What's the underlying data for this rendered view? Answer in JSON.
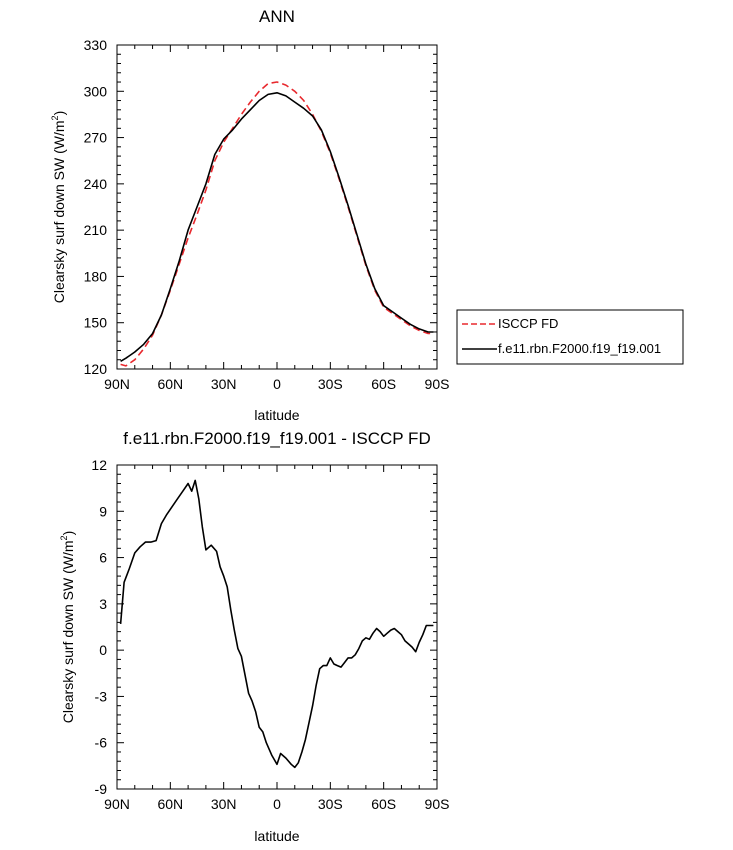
{
  "colors": {
    "model": "#000000",
    "obs": "#e8292e"
  },
  "chart_data": [
    {
      "type": "line",
      "title": "ANN",
      "xlabel": "latitude",
      "ylabel": "Clearsky surf down SW (W/m",
      "ylabel_sup": "2",
      "ylabel_tail": ")",
      "xlim": [
        90,
        -90
      ],
      "ylim": [
        120,
        330
      ],
      "xticks": [
        90,
        60,
        30,
        0,
        -30,
        -60,
        -90
      ],
      "xtick_labels": [
        "90N",
        "60N",
        "30N",
        "0",
        "30S",
        "60S",
        "90S"
      ],
      "yticks": [
        120,
        150,
        180,
        210,
        240,
        270,
        300,
        330
      ],
      "ytick_labels": [
        "120",
        "150",
        "180",
        "210",
        "240",
        "270",
        "300",
        "330"
      ],
      "legend_position": "right",
      "series": [
        {
          "name": "ISCCP FD",
          "style": "dashed",
          "color": "#e8292e",
          "x": [
            88,
            85,
            80,
            75,
            70,
            65,
            60,
            55,
            50,
            45,
            40,
            35,
            30,
            25,
            20,
            15,
            10,
            5,
            0,
            -5,
            -10,
            -15,
            -20,
            -25,
            -30,
            -35,
            -40,
            -45,
            -50,
            -55,
            -60,
            -65,
            -70,
            -75,
            -80,
            -85,
            -88
          ],
          "y": [
            123,
            122,
            126,
            133,
            142,
            155,
            171,
            188,
            205,
            220,
            236,
            255,
            267,
            276,
            285,
            293,
            300,
            305,
            306,
            304,
            300,
            294,
            285,
            274,
            260,
            243,
            225,
            206,
            187,
            171,
            160,
            156,
            152,
            148,
            145,
            143,
            143
          ]
        },
        {
          "name": "f.e11.rbn.F2000.f19_f19.001",
          "style": "solid",
          "color": "#000000",
          "x": [
            88,
            85,
            80,
            75,
            70,
            65,
            60,
            55,
            50,
            45,
            40,
            35,
            30,
            25,
            20,
            15,
            10,
            5,
            0,
            -5,
            -10,
            -15,
            -20,
            -25,
            -30,
            -35,
            -40,
            -45,
            -50,
            -55,
            -60,
            -65,
            -70,
            -75,
            -80,
            -85,
            -88
          ],
          "y": [
            125,
            127,
            131,
            136,
            143,
            155,
            172,
            190,
            210,
            225,
            240,
            259,
            269,
            275,
            282,
            288,
            294,
            298,
            299,
            297,
            293,
            289,
            284,
            275,
            261,
            244,
            226,
            207,
            188,
            172,
            161,
            157,
            153,
            149,
            146,
            144,
            144
          ]
        }
      ]
    },
    {
      "type": "line",
      "title": "f.e11.rbn.F2000.f19_f19.001 - ISCCP FD",
      "xlabel": "latitude",
      "ylabel": "Clearsky surf down SW (W/m",
      "ylabel_sup": "2",
      "ylabel_tail": ")",
      "xlim": [
        90,
        -90
      ],
      "ylim": [
        -9,
        12
      ],
      "xticks": [
        90,
        60,
        30,
        0,
        -30,
        -60,
        -90
      ],
      "xtick_labels": [
        "90N",
        "60N",
        "30N",
        "0",
        "30S",
        "60S",
        "90S"
      ],
      "yticks": [
        -9,
        -6,
        -3,
        0,
        3,
        6,
        9,
        12
      ],
      "ytick_labels": [
        "-9",
        "-6",
        "-3",
        "0",
        "3",
        "6",
        "9",
        "12"
      ],
      "series": [
        {
          "style": "solid",
          "color": "#000000",
          "x": [
            88,
            86,
            83,
            80,
            77,
            74,
            71,
            68,
            65,
            62,
            59,
            56,
            53,
            50,
            48,
            46,
            44,
            42,
            40,
            37,
            34,
            32,
            30,
            28,
            26,
            24,
            22,
            20,
            18,
            16,
            14,
            12,
            10,
            8,
            6,
            3,
            0,
            -2,
            -5,
            -8,
            -10,
            -12,
            -14,
            -16,
            -18,
            -20,
            -22,
            -24,
            -26,
            -28,
            -30,
            -32,
            -34,
            -36,
            -38,
            -40,
            -42,
            -44,
            -46,
            -48,
            -50,
            -52,
            -54,
            -56,
            -58,
            -60,
            -62,
            -64,
            -66,
            -68,
            -70,
            -72,
            -74,
            -76,
            -78,
            -80,
            -82,
            -84,
            -86,
            -88
          ],
          "y": [
            1.7,
            4.4,
            5.3,
            6.3,
            6.7,
            7.0,
            7.0,
            7.1,
            8.2,
            8.8,
            9.3,
            9.8,
            10.3,
            10.8,
            10.3,
            11.0,
            9.8,
            8.0,
            6.5,
            6.8,
            6.4,
            5.4,
            4.8,
            4.1,
            2.6,
            1.3,
            0.1,
            -0.4,
            -1.6,
            -2.8,
            -3.3,
            -4.0,
            -5.0,
            -5.3,
            -6.0,
            -6.8,
            -7.4,
            -6.7,
            -7.0,
            -7.4,
            -7.6,
            -7.3,
            -6.6,
            -5.8,
            -4.7,
            -3.6,
            -2.3,
            -1.2,
            -1.0,
            -1.0,
            -0.5,
            -0.9,
            -1.0,
            -1.1,
            -0.8,
            -0.5,
            -0.5,
            -0.3,
            0.1,
            0.6,
            0.8,
            0.7,
            1.1,
            1.4,
            1.2,
            0.9,
            1.1,
            1.3,
            1.4,
            1.2,
            1.0,
            0.6,
            0.4,
            0.2,
            -0.1,
            0.5,
            1.0,
            1.6,
            1.6,
            1.6
          ]
        }
      ]
    }
  ]
}
